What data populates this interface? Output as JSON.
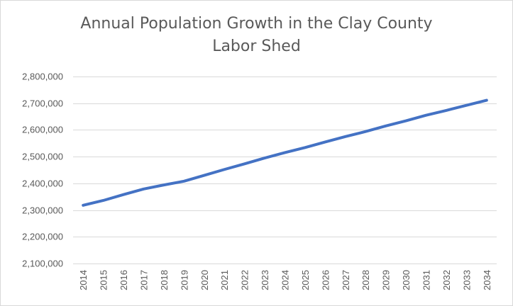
{
  "chart_data": {
    "type": "line",
    "title_lines": [
      "Annual Population Growth in the Clay County",
      "Labor Shed"
    ],
    "xlabel": "",
    "ylabel": "",
    "x": [
      "2014",
      "2015",
      "2016",
      "2017",
      "2018",
      "2019",
      "2020",
      "2021",
      "2022",
      "2023",
      "2024",
      "2025",
      "2026",
      "2027",
      "2028",
      "2029",
      "2030",
      "2031",
      "2032",
      "2033",
      "2034"
    ],
    "series": [
      {
        "values": [
          2318000,
          2336000,
          2358000,
          2379000,
          2394000,
          2408000,
          2430000,
          2452000,
          2473000,
          2495000,
          2515000,
          2534000,
          2555000,
          2575000,
          2594000,
          2615000,
          2634000,
          2655000,
          2673000,
          2692000,
          2711000
        ],
        "color": "#4472c4"
      }
    ],
    "ylim": [
      2100000,
      2800000
    ],
    "yticks": [
      2100000,
      2200000,
      2300000,
      2400000,
      2500000,
      2600000,
      2700000,
      2800000
    ],
    "ytick_labels": [
      "2,100,000",
      "2,200,000",
      "2,300,000",
      "2,400,000",
      "2,500,000",
      "2,600,000",
      "2,700,000",
      "2,800,000"
    ],
    "grid": true,
    "gridline_color": "#d9d9d9",
    "legend": false
  }
}
